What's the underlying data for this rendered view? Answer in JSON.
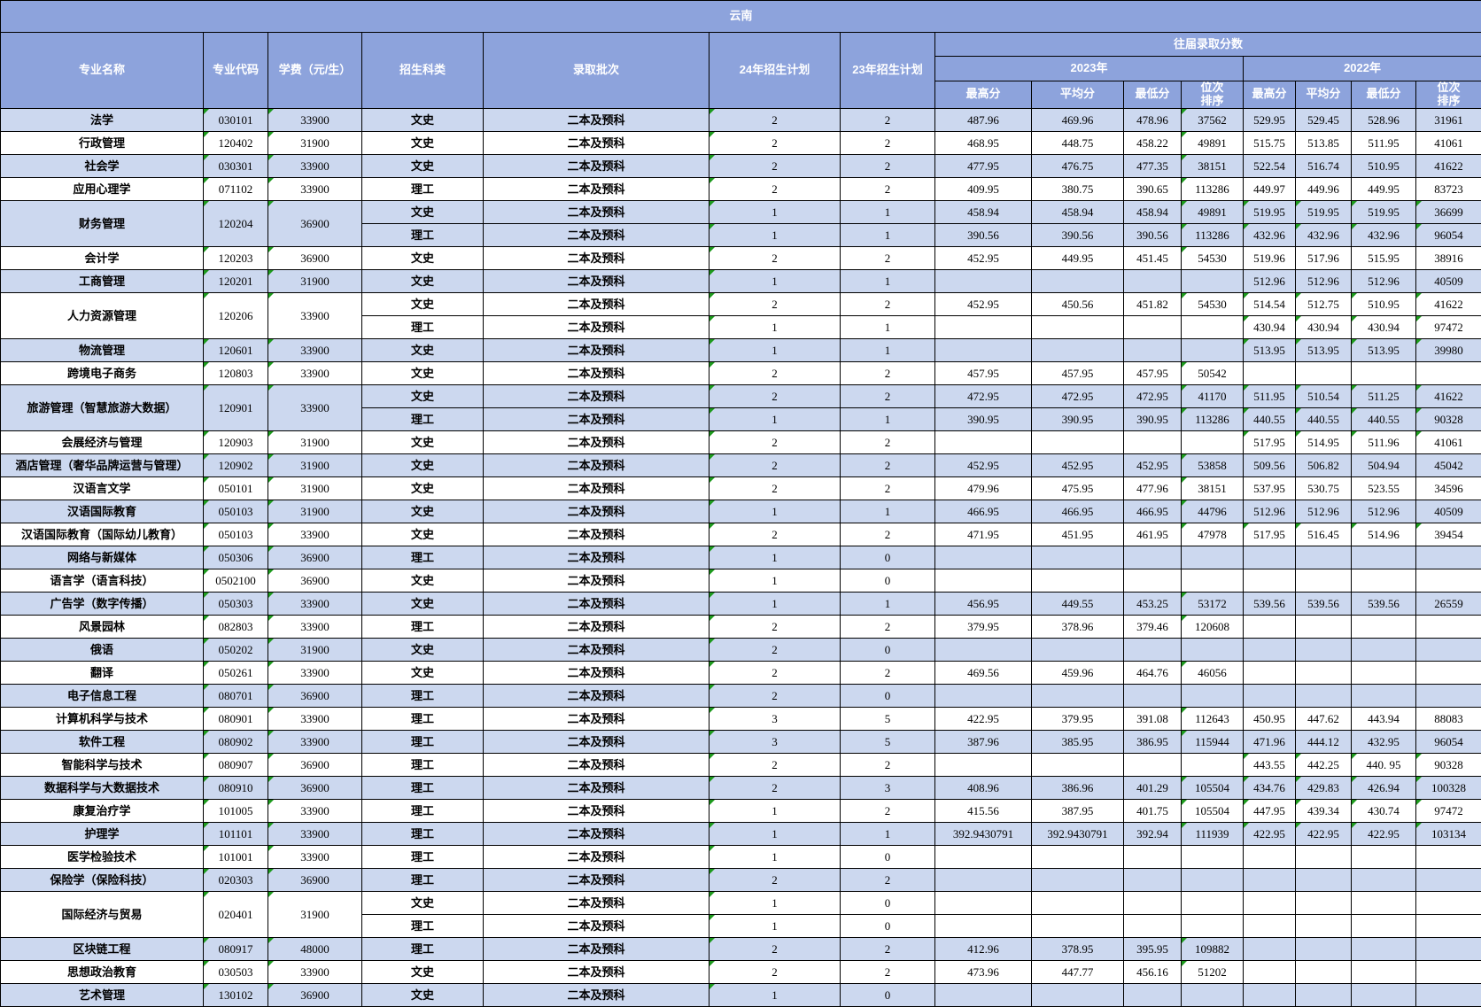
{
  "title": "云南",
  "colors": {
    "header_bg": "#8da3dc",
    "row_alt_bg": "#ccd8ef",
    "row_bg": "#ffffff",
    "border": "#000000",
    "marker_green": "#1e9b1e",
    "header_text": "#ffffff"
  },
  "columns": {
    "major": "专业名称",
    "code": "专业代码",
    "fee": "学费（元/生）",
    "category": "招生科类",
    "batch": "录取批次",
    "plan24": "24年招生计划",
    "plan23": "23年招生计划",
    "history": "往届录取分数",
    "y2023": "2023年",
    "y2022": "2022年",
    "hi": "最高分",
    "avg": "平均分",
    "lo": "最低分",
    "rank": "位次\n排序"
  },
  "majors": [
    {
      "name": "法学",
      "code": "030101",
      "fee": "33900",
      "shade": true,
      "rows": [
        {
          "category": "文史",
          "batch": "二本及预科",
          "plan24": "2",
          "plan23": "2",
          "s2023": [
            "487.96",
            "469.96",
            "478.96",
            "37562"
          ],
          "s2022": [
            "529.95",
            "529.45",
            "528.96",
            "31961"
          ],
          "m22": false
        }
      ]
    },
    {
      "name": "行政管理",
      "code": "120402",
      "fee": "31900",
      "shade": false,
      "rows": [
        {
          "category": "文史",
          "batch": "二本及预科",
          "plan24": "2",
          "plan23": "2",
          "s2023": [
            "468.95",
            "448.75",
            "458.22",
            "49891"
          ],
          "s2022": [
            "515.75",
            "513.85",
            "511.95",
            "41061"
          ],
          "m22": false
        }
      ]
    },
    {
      "name": "社会学",
      "code": "030301",
      "fee": "33900",
      "shade": true,
      "rows": [
        {
          "category": "文史",
          "batch": "二本及预科",
          "plan24": "2",
          "plan23": "2",
          "s2023": [
            "477.95",
            "476.75",
            "477.35",
            "38151"
          ],
          "s2022": [
            "522.54",
            "516.74",
            "510.95",
            "41622"
          ],
          "m22": false
        }
      ]
    },
    {
      "name": "应用心理学",
      "code": "071102",
      "fee": "33900",
      "shade": false,
      "rows": [
        {
          "category": "理工",
          "batch": "二本及预科",
          "plan24": "2",
          "plan23": "2",
          "s2023": [
            "409.95",
            "380.75",
            "390.65",
            "113286"
          ],
          "s2022": [
            "449.97",
            "449.96",
            "449.95",
            "83723"
          ],
          "m22": false
        }
      ]
    },
    {
      "name": "财务管理",
      "code": "120204",
      "fee": "36900",
      "shade": true,
      "rows": [
        {
          "category": "文史",
          "batch": "二本及预科",
          "plan24": "1",
          "plan23": "1",
          "s2023": [
            "458.94",
            "458.94",
            "458.94",
            "49891"
          ],
          "s2022": [
            "519.95",
            "519.95",
            "519.95",
            "36699"
          ],
          "m22": true
        },
        {
          "category": "理工",
          "batch": "二本及预科",
          "plan24": "1",
          "plan23": "1",
          "s2023": [
            "390.56",
            "390.56",
            "390.56",
            "113286"
          ],
          "s2022": [
            "432.96",
            "432.96",
            "432.96",
            "96054"
          ],
          "m22": true
        }
      ]
    },
    {
      "name": "会计学",
      "code": "120203",
      "fee": "36900",
      "shade": false,
      "rows": [
        {
          "category": "文史",
          "batch": "二本及预科",
          "plan24": "2",
          "plan23": "2",
          "s2023": [
            "452.95",
            "449.95",
            "451.45",
            "54530"
          ],
          "s2022": [
            "519.96",
            "517.96",
            "515.95",
            "38916"
          ],
          "m22": false
        }
      ]
    },
    {
      "name": "工商管理",
      "code": "120201",
      "fee": "31900",
      "shade": true,
      "rows": [
        {
          "category": "文史",
          "batch": "二本及预科",
          "plan24": "1",
          "plan23": "1",
          "s2023": [
            "",
            "",
            "",
            ""
          ],
          "s2022": [
            "512.96",
            "512.96",
            "512.96",
            "40509"
          ],
          "m22": false
        }
      ]
    },
    {
      "name": "人力资源管理",
      "code": "120206",
      "fee": "33900",
      "shade": false,
      "rows": [
        {
          "category": "文史",
          "batch": "二本及预科",
          "plan24": "2",
          "plan23": "2",
          "s2023": [
            "452.95",
            "450.56",
            "451.82",
            "54530"
          ],
          "s2022": [
            "514.54",
            "512.75",
            "510.95",
            "41622"
          ],
          "m22": true
        },
        {
          "category": "理工",
          "batch": "二本及预科",
          "plan24": "1",
          "plan23": "1",
          "s2023": [
            "",
            "",
            "",
            ""
          ],
          "s2022": [
            "430.94",
            "430.94",
            "430.94",
            "97472"
          ],
          "m22": true
        }
      ]
    },
    {
      "name": "物流管理",
      "code": "120601",
      "fee": "33900",
      "shade": true,
      "rows": [
        {
          "category": "文史",
          "batch": "二本及预科",
          "plan24": "1",
          "plan23": "1",
          "s2023": [
            "",
            "",
            "",
            ""
          ],
          "s2022": [
            "513.95",
            "513.95",
            "513.95",
            "39980"
          ],
          "m22": true
        }
      ]
    },
    {
      "name": "跨境电子商务",
      "code": "120803",
      "fee": "33900",
      "shade": false,
      "rows": [
        {
          "category": "文史",
          "batch": "二本及预科",
          "plan24": "2",
          "plan23": "2",
          "s2023": [
            "457.95",
            "457.95",
            "457.95",
            "50542"
          ],
          "s2022": [
            "",
            "",
            "",
            ""
          ],
          "m22": false
        }
      ]
    },
    {
      "name": "旅游管理（智慧旅游大数据）",
      "code": "120901",
      "fee": "33900",
      "shade": true,
      "rows": [
        {
          "category": "文史",
          "batch": "二本及预科",
          "plan24": "2",
          "plan23": "2",
          "s2023": [
            "472.95",
            "472.95",
            "472.95",
            "41170"
          ],
          "s2022": [
            "511.95",
            "510.54",
            "511.25",
            "41622"
          ],
          "m22": true
        },
        {
          "category": "理工",
          "batch": "二本及预科",
          "plan24": "1",
          "plan23": "1",
          "s2023": [
            "390.95",
            "390.95",
            "390.95",
            "113286"
          ],
          "s2022": [
            "440.55",
            "440.55",
            "440.55",
            "90328"
          ],
          "m22": true
        }
      ]
    },
    {
      "name": "会展经济与管理",
      "code": "120903",
      "fee": "31900",
      "shade": false,
      "rows": [
        {
          "category": "文史",
          "batch": "二本及预科",
          "plan24": "2",
          "plan23": "2",
          "s2023": [
            "",
            "",
            "",
            ""
          ],
          "s2022": [
            "517.95",
            "514.95",
            "511.96",
            "41061"
          ],
          "m22": true
        }
      ]
    },
    {
      "name": "酒店管理（奢华品牌运营与管理）",
      "code": "120902",
      "fee": "31900",
      "shade": true,
      "rows": [
        {
          "category": "文史",
          "batch": "二本及预科",
          "plan24": "2",
          "plan23": "2",
          "s2023": [
            "452.95",
            "452.95",
            "452.95",
            "53858"
          ],
          "s2022": [
            "509.56",
            "506.82",
            "504.94",
            "45042"
          ],
          "m22": false
        }
      ]
    },
    {
      "name": "汉语言文学",
      "code": "050101",
      "fee": "31900",
      "shade": false,
      "rows": [
        {
          "category": "文史",
          "batch": "二本及预科",
          "plan24": "2",
          "plan23": "2",
          "s2023": [
            "479.96",
            "475.95",
            "477.96",
            "38151"
          ],
          "s2022": [
            "537.95",
            "530.75",
            "523.55",
            "34596"
          ],
          "m22": false
        }
      ]
    },
    {
      "name": "汉语国际教育",
      "code": "050103",
      "fee": "31900",
      "shade": true,
      "rows": [
        {
          "category": "文史",
          "batch": "二本及预科",
          "plan24": "1",
          "plan23": "1",
          "s2023": [
            "466.95",
            "466.95",
            "466.95",
            "44796"
          ],
          "s2022": [
            "512.96",
            "512.96",
            "512.96",
            "40509"
          ],
          "m22": false
        }
      ]
    },
    {
      "name": "汉语国际教育（国际幼儿教育）",
      "code": "050103",
      "fee": "33900",
      "shade": false,
      "rows": [
        {
          "category": "文史",
          "batch": "二本及预科",
          "plan24": "2",
          "plan23": "2",
          "s2023": [
            "471.95",
            "451.95",
            "461.95",
            "47978"
          ],
          "s2022": [
            "517.95",
            "516.45",
            "514.96",
            "39454"
          ],
          "m22": true
        }
      ]
    },
    {
      "name": "网络与新媒体",
      "code": "050306",
      "fee": "36900",
      "shade": true,
      "rows": [
        {
          "category": "理工",
          "batch": "二本及预科",
          "plan24": "1",
          "plan23": "0",
          "s2023": [
            "",
            "",
            "",
            ""
          ],
          "s2022": [
            "",
            "",
            "",
            ""
          ],
          "m22": false
        }
      ]
    },
    {
      "name": "语言学（语言科技）",
      "code": "0502100",
      "fee": "36900",
      "shade": false,
      "rows": [
        {
          "category": "文史",
          "batch": "二本及预科",
          "plan24": "1",
          "plan23": "0",
          "s2023": [
            "",
            "",
            "",
            ""
          ],
          "s2022": [
            "",
            "",
            "",
            ""
          ],
          "m22": false
        }
      ]
    },
    {
      "name": "广告学（数字传播）",
      "code": "050303",
      "fee": "33900",
      "shade": true,
      "rows": [
        {
          "category": "文史",
          "batch": "二本及预科",
          "plan24": "1",
          "plan23": "1",
          "s2023": [
            "456.95",
            "449.55",
            "453.25",
            "53172"
          ],
          "s2022": [
            "539.56",
            "539.56",
            "539.56",
            "26559"
          ],
          "m22": false
        }
      ]
    },
    {
      "name": "风景园林",
      "code": "082803",
      "fee": "33900",
      "shade": false,
      "rows": [
        {
          "category": "理工",
          "batch": "二本及预科",
          "plan24": "2",
          "plan23": "2",
          "s2023": [
            "379.95",
            "378.96",
            "379.46",
            "120608"
          ],
          "s2022": [
            "",
            "",
            "",
            ""
          ],
          "m22": false
        }
      ]
    },
    {
      "name": "俄语",
      "code": "050202",
      "fee": "31900",
      "shade": true,
      "rows": [
        {
          "category": "文史",
          "batch": "二本及预科",
          "plan24": "2",
          "plan23": "0",
          "s2023": [
            "",
            "",
            "",
            ""
          ],
          "s2022": [
            "",
            "",
            "",
            ""
          ],
          "m22": false
        }
      ]
    },
    {
      "name": "翻译",
      "code": "050261",
      "fee": "33900",
      "shade": false,
      "rows": [
        {
          "category": "文史",
          "batch": "二本及预科",
          "plan24": "2",
          "plan23": "2",
          "s2023": [
            "469.56",
            "459.96",
            "464.76",
            "46056"
          ],
          "s2022": [
            "",
            "",
            "",
            ""
          ],
          "m22": false
        }
      ]
    },
    {
      "name": "电子信息工程",
      "code": "080701",
      "fee": "36900",
      "shade": true,
      "rows": [
        {
          "category": "理工",
          "batch": "二本及预科",
          "plan24": "2",
          "plan23": "0",
          "s2023": [
            "",
            "",
            "",
            ""
          ],
          "s2022": [
            "",
            "",
            "",
            ""
          ],
          "m22": false
        }
      ]
    },
    {
      "name": "计算机科学与技术",
      "code": "080901",
      "fee": "33900",
      "shade": false,
      "rows": [
        {
          "category": "理工",
          "batch": "二本及预科",
          "plan24": "3",
          "plan23": "5",
          "s2023": [
            "422.95",
            "379.95",
            "391.08",
            "112643"
          ],
          "s2022": [
            "450.95",
            "447.62",
            "443.94",
            "88083"
          ],
          "m22": false
        }
      ]
    },
    {
      "name": "软件工程",
      "code": "080902",
      "fee": "33900",
      "shade": true,
      "rows": [
        {
          "category": "理工",
          "batch": "二本及预科",
          "plan24": "3",
          "plan23": "5",
          "s2023": [
            "387.96",
            "385.95",
            "386.95",
            "115944"
          ],
          "s2022": [
            "471.96",
            "444.12",
            "432.95",
            "96054"
          ],
          "m22": false
        }
      ]
    },
    {
      "name": "智能科学与技术",
      "code": "080907",
      "fee": "36900",
      "shade": false,
      "rows": [
        {
          "category": "理工",
          "batch": "二本及预科",
          "plan24": "2",
          "plan23": "2",
          "s2023": [
            "",
            "",
            "",
            ""
          ],
          "s2022": [
            "443.55",
            "442.25",
            "440. 95",
            "90328"
          ],
          "m22": true
        }
      ]
    },
    {
      "name": "数据科学与大数据技术",
      "code": "080910",
      "fee": "36900",
      "shade": true,
      "rows": [
        {
          "category": "理工",
          "batch": "二本及预科",
          "plan24": "2",
          "plan23": "3",
          "s2023": [
            "408.96",
            "386.96",
            "401.29",
            "105504"
          ],
          "s2022": [
            "434.76",
            "429.83",
            "426.94",
            "100328"
          ],
          "m22": true
        }
      ]
    },
    {
      "name": "康复治疗学",
      "code": "101005",
      "fee": "33900",
      "shade": false,
      "rows": [
        {
          "category": "理工",
          "batch": "二本及预科",
          "plan24": "1",
          "plan23": "2",
          "s2023": [
            "415.56",
            "387.95",
            "401.75",
            "105504"
          ],
          "s2022": [
            "447.95",
            "439.34",
            "430.74",
            "97472"
          ],
          "m22": true
        }
      ]
    },
    {
      "name": "护理学",
      "code": "101101",
      "fee": "33900",
      "shade": true,
      "rows": [
        {
          "category": "理工",
          "batch": "二本及预科",
          "plan24": "1",
          "plan23": "1",
          "s2023": [
            "392.9430791",
            "392.9430791",
            "392.94",
            "111939"
          ],
          "s2022": [
            "422.95",
            "422.95",
            "422.95",
            "103134"
          ],
          "m22": true
        }
      ]
    },
    {
      "name": "医学检验技术",
      "code": "101001",
      "fee": "33900",
      "shade": false,
      "rows": [
        {
          "category": "理工",
          "batch": "二本及预科",
          "plan24": "1",
          "plan23": "0",
          "s2023": [
            "",
            "",
            "",
            ""
          ],
          "s2022": [
            "",
            "",
            "",
            ""
          ],
          "m22": false
        }
      ]
    },
    {
      "name": "保险学（保险科技）",
      "code": "020303",
      "fee": "36900",
      "shade": true,
      "rows": [
        {
          "category": "理工",
          "batch": "二本及预科",
          "plan24": "2",
          "plan23": "2",
          "s2023": [
            "",
            "",
            "",
            ""
          ],
          "s2022": [
            "",
            "",
            "",
            ""
          ],
          "m22": false
        }
      ]
    },
    {
      "name": "国际经济与贸易",
      "code": "020401",
      "fee": "31900",
      "shade": false,
      "rows": [
        {
          "category": "文史",
          "batch": "二本及预科",
          "plan24": "1",
          "plan23": "0",
          "s2023": [
            "",
            "",
            "",
            ""
          ],
          "s2022": [
            "",
            "",
            "",
            ""
          ],
          "m22": false
        },
        {
          "category": "理工",
          "batch": "二本及预科",
          "plan24": "1",
          "plan23": "0",
          "s2023": [
            "",
            "",
            "",
            ""
          ],
          "s2022": [
            "",
            "",
            "",
            ""
          ],
          "m22": false
        }
      ]
    },
    {
      "name": "区块链工程",
      "code": "080917",
      "fee": "48000",
      "shade": true,
      "rows": [
        {
          "category": "理工",
          "batch": "二本及预科",
          "plan24": "2",
          "plan23": "2",
          "s2023": [
            "412.96",
            "378.95",
            "395.95",
            "109882"
          ],
          "s2022": [
            "",
            "",
            "",
            ""
          ],
          "m22": false
        }
      ]
    },
    {
      "name": "思想政治教育",
      "code": "030503",
      "fee": "33900",
      "shade": false,
      "rows": [
        {
          "category": "文史",
          "batch": "二本及预科",
          "plan24": "2",
          "plan23": "2",
          "s2023": [
            "473.96",
            "447.77",
            "456.16",
            "51202"
          ],
          "s2022": [
            "",
            "",
            "",
            ""
          ],
          "m22": false
        }
      ]
    },
    {
      "name": "艺术管理",
      "code": "130102",
      "fee": "36900",
      "shade": true,
      "rows": [
        {
          "category": "文史",
          "batch": "二本及预科",
          "plan24": "1",
          "plan23": "0",
          "s2023": [
            "",
            "",
            "",
            ""
          ],
          "s2022": [
            "",
            "",
            "",
            ""
          ],
          "m22": false
        }
      ]
    }
  ]
}
